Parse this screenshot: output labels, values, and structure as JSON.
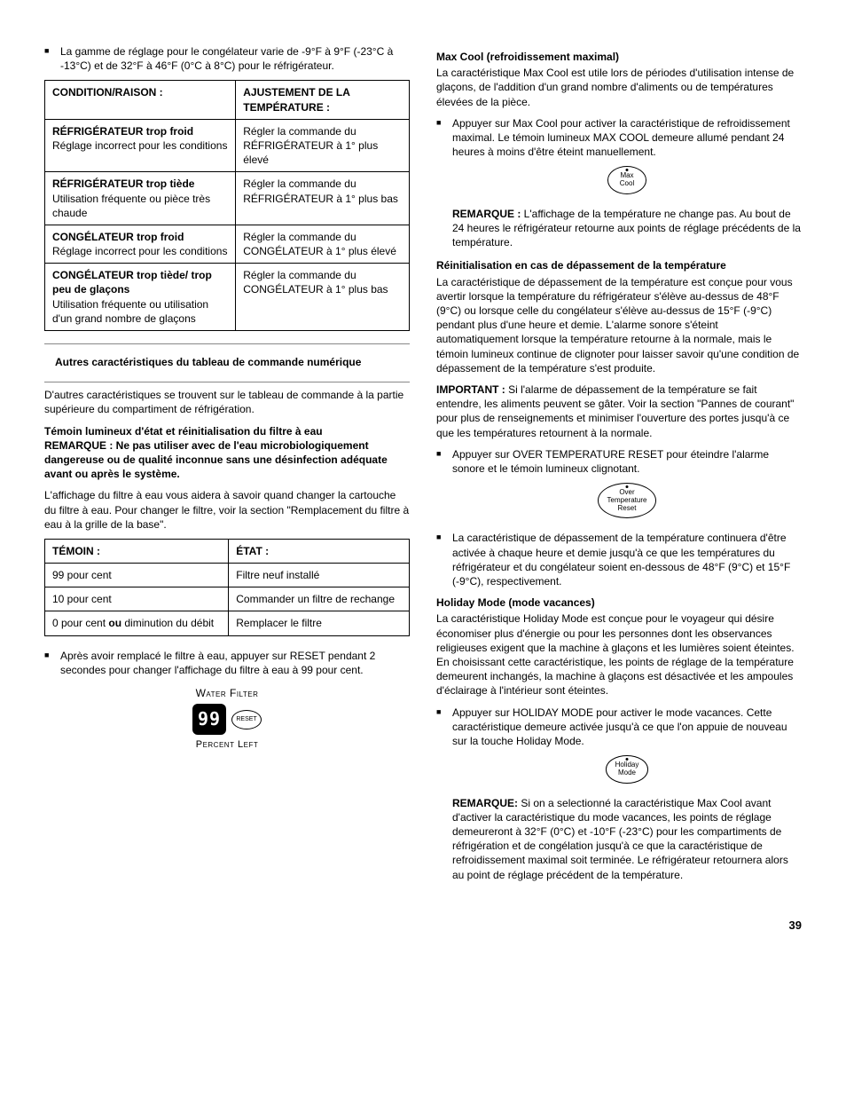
{
  "page_number": "39",
  "left": {
    "range_bullet": "La gamme de réglage pour le congélateur varie de -9°F à 9°F (-23°C à -13°C) et de 32°F à 46°F (0°C à 8°C) pour le réfrigérateur.",
    "table1": {
      "col1": "CONDITION/RAISON :",
      "col2": "AJUSTEMENT DE LA TEMPÉRATURE :",
      "rows": [
        {
          "c1_bold": "RÉFRIGÉRATEUR trop froid",
          "c1_rest": "Réglage incorrect pour les conditions",
          "c2": "Régler la commande du RÉFRIGÉRATEUR à 1° plus élevé"
        },
        {
          "c1_bold": "RÉFRIGÉRATEUR trop tiède",
          "c1_rest": "Utilisation fréquente ou pièce très  chaude",
          "c2": "Régler la commande du RÉFRIGÉRATEUR à 1° plus bas"
        },
        {
          "c1_bold": "CONGÉLATEUR trop froid",
          "c1_rest": "Réglage incorrect pour les conditions",
          "c2": "Régler la commande du CONGÉLATEUR à 1° plus élevé"
        },
        {
          "c1_bold": "CONGÉLATEUR trop tiède/ trop peu de glaçons",
          "c1_rest": "Utilisation fréquente ou utilisation d'un grand nombre de glaçons",
          "c2": "Régler la commande du CONGÉLATEUR à 1° plus bas"
        }
      ]
    },
    "autres_head": "Autres caractéristiques du tableau de commande numérique",
    "autres_p": "D'autres caractéristiques se trouvent sur le tableau de commande à la partie supérieure du compartiment de réfrigération.",
    "filter_head": "Témoin lumineux d'état et réinitialisation du filtre à eau",
    "filter_warn": "REMARQUE : Ne pas utiliser avec de l'eau microbiologiquement dangereuse ou de qualité inconnue sans une désinfection adéquate avant ou après le système.",
    "filter_p": "L'affichage du filtre à eau vous aidera à savoir quand changer la cartouche du filtre à eau. Pour changer le filtre, voir la section \"Remplacement du filtre à eau à la grille de la base\".",
    "table2": {
      "col1": "TÉMOIN :",
      "col2": "ÉTAT :",
      "rows": [
        {
          "c1": "99 pour cent",
          "c2": "Filtre neuf installé"
        },
        {
          "c1": "10 pour cent",
          "c2": "Commander un filtre de rechange"
        },
        {
          "c1_pre": "0 pour cent ",
          "c1_bold": "ou",
          "c1_post": " diminution du débit",
          "c2": "Remplacer le filtre"
        }
      ]
    },
    "after_bullet": "Après avoir remplacé le filtre à eau, appuyer sur RESET pendant 2 secondes pour changer l'affichage du filtre à eau à 99 pour cent.",
    "filter_display": {
      "title": "Water Filter",
      "value": "99",
      "reset": "RESET",
      "sub": "Percent Left"
    }
  },
  "right": {
    "maxcool_head": "Max Cool (refroidissement maximal)",
    "maxcool_p": "La caractéristique Max Cool est utile lors de périodes d'utilisation intense de glaçons, de l'addition d'un grand nombre d'aliments ou de températures élevées de la pièce.",
    "maxcool_bullet": "Appuyer sur Max Cool pour activer la caractéristique de refroidissement maximal. Le témoin lumineux MAX COOL demeure allumé pendant 24 heures à moins d'être éteint manuellement.",
    "btn_maxcool_l1": "Max",
    "btn_maxcool_l2": "Cool",
    "maxcool_note_b": "REMARQUE :",
    "maxcool_note": " L'affichage de la température ne change pas. Au bout de 24 heures le réfrigérateur retourne aux points de réglage précédents de la température.",
    "overtemp_head": "Réinitialisation en cas de dépassement de la température",
    "overtemp_p": "La caractéristique de dépassement de la température est conçue pour vous avertir lorsque la température du réfrigérateur s'élève au-dessus de 48°F (9°C) ou lorsque celle du congélateur s'élève au-dessus de 15°F (-9°C) pendant plus d'une heure et demie. L'alarme sonore s'éteint automatiquement lorsque la température retourne à la normale, mais le témoin lumineux continue de clignoter pour laisser savoir qu'une condition de dépassement de la température s'est produite.",
    "overtemp_imp_b": "IMPORTANT :",
    "overtemp_imp": " Si l'alarme de dépassement de la température se fait entendre, les aliments peuvent se gâter. Voir la section \"Pannes de courant\" pour plus de renseignements et minimiser l'ouverture des portes jusqu'à ce que les températures retournent à la normale.",
    "overtemp_bullet1": "Appuyer sur OVER TEMPERATURE RESET pour éteindre l'alarme sonore et le témoin lumineux clignotant.",
    "btn_over_l1": "Over",
    "btn_over_l2": "Temperature",
    "btn_over_l3": "Reset",
    "overtemp_bullet2": "La caractéristique de dépassement de la température continuera d'être activée à chaque heure et demie jusqu'à ce que les températures du réfrigérateur et du congélateur soient en-dessous de 48°F (9°C) et 15°F (-9°C), respectivement.",
    "holiday_head": "Holiday Mode (mode vacances)",
    "holiday_p": "La caractéristique Holiday Mode est conçue pour le voyageur qui désire économiser plus d'énergie ou pour les personnes dont les observances religieuses exigent que la machine à glaçons et les lumières soient éteintes. En choisissant cette caractéristique, les points de réglage de la température demeurent inchangés, la machine à glaçons est désactivée et les ampoules d'éclairage à l'intérieur sont éteintes.",
    "holiday_bullet": "Appuyer sur HOLIDAY MODE pour activer le mode vacances. Cette caractéristique demeure activée jusqu'à ce que l'on appuie de nouveau sur la touche Holiday Mode.",
    "btn_hol_l1": "Holiday",
    "btn_hol_l2": "Mode",
    "holiday_note_b": "REMARQUE:",
    "holiday_note": " Si on a selectionné la caractéristique Max Cool avant d'activer la caractéristique du mode vacances, les points de réglage demeureront à 32°F (0°C) et -10°F (-23°C) pour les compartiments de réfrigération et de congélation jusqu'à ce que la caractéristique de refroidissement maximal soit terminée. Le réfrigérateur retournera alors au point de réglage précédent de la température."
  }
}
